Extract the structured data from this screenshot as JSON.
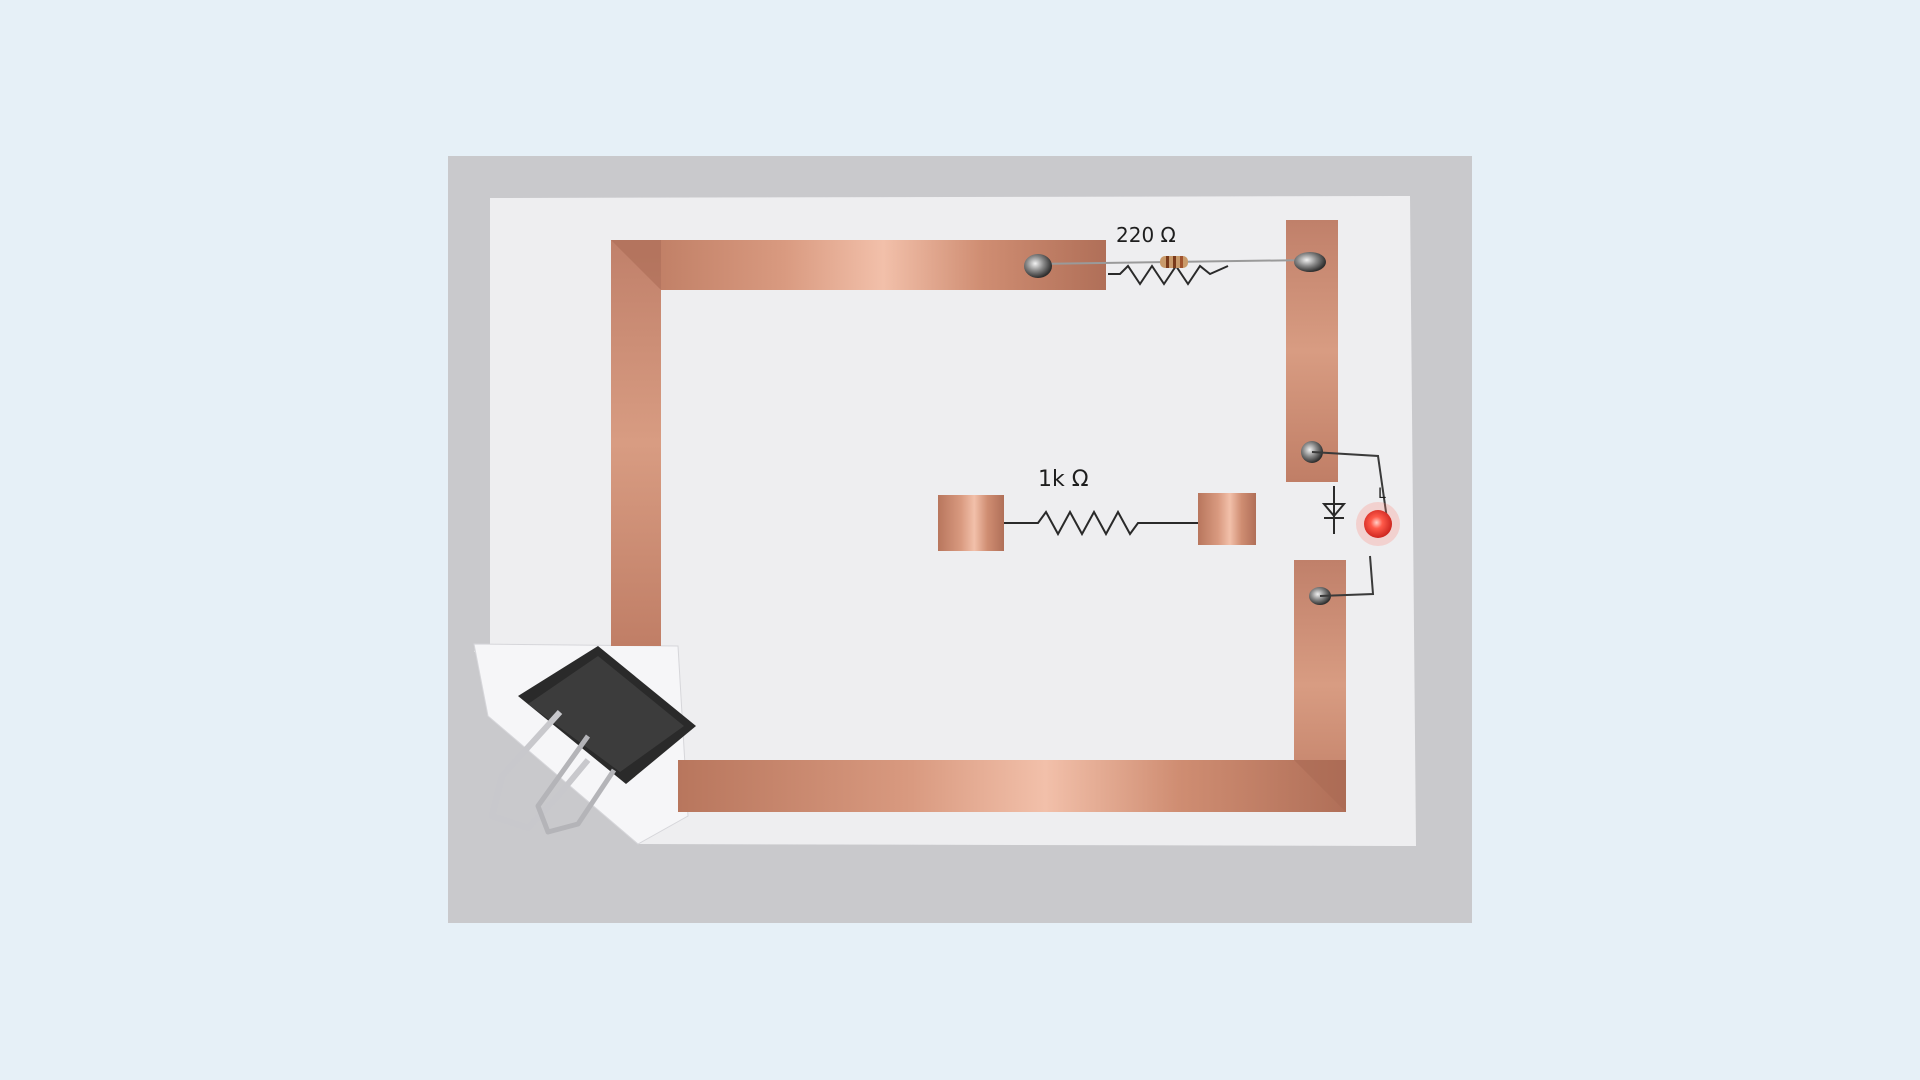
{
  "photo": {
    "labels": {
      "resistor_top": "220 Ω",
      "resistor_middle": "1k Ω",
      "led": "L"
    },
    "colors": {
      "page_background": "#e6f0f7",
      "table_surface": "#c9c9cc",
      "paper": "#eeeef0",
      "copper_tape": "#c98a72",
      "led": "#e4342f",
      "binder_clip": "#2a2a2a",
      "wire": "#3a3a3a"
    }
  }
}
